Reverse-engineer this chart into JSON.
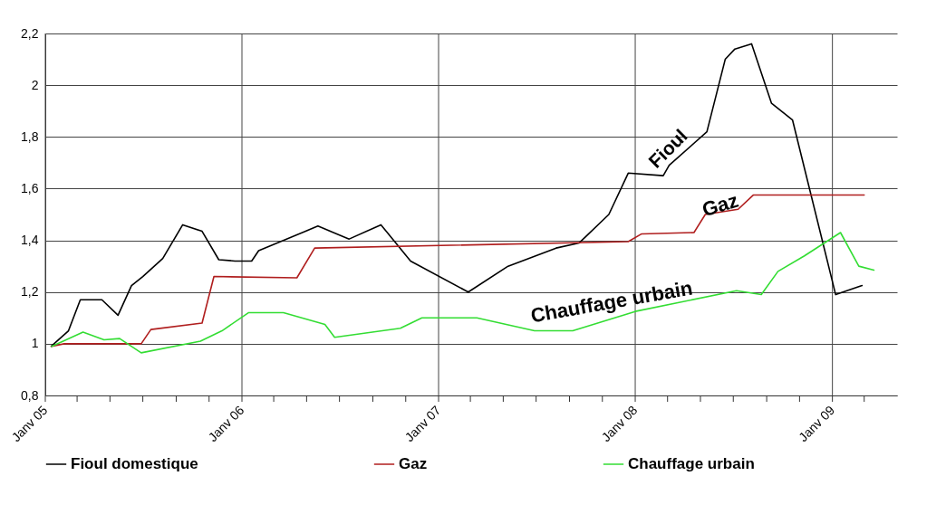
{
  "chart_data": {
    "type": "line",
    "xlim": [
      "2005-01-01",
      "2009-05-01"
    ],
    "xticks": [
      {
        "value": "2005-01-01",
        "label": "Janv 05"
      },
      {
        "value": "2005-03-01",
        "label": null
      },
      {
        "value": "2005-05-01",
        "label": null
      },
      {
        "value": "2005-07-01",
        "label": null
      },
      {
        "value": "2005-09-01",
        "label": null
      },
      {
        "value": "2005-11-01",
        "label": null
      },
      {
        "value": "2006-01-01",
        "label": "Janv 06"
      },
      {
        "value": "2006-03-01",
        "label": null
      },
      {
        "value": "2006-05-01",
        "label": null
      },
      {
        "value": "2006-07-01",
        "label": null
      },
      {
        "value": "2006-09-01",
        "label": null
      },
      {
        "value": "2006-11-01",
        "label": null
      },
      {
        "value": "2007-01-01",
        "label": "Janv 07"
      },
      {
        "value": "2007-03-01",
        "label": null
      },
      {
        "value": "2007-05-01",
        "label": null
      },
      {
        "value": "2007-07-01",
        "label": null
      },
      {
        "value": "2007-09-01",
        "label": null
      },
      {
        "value": "2007-11-01",
        "label": null
      },
      {
        "value": "2008-01-01",
        "label": "Janv 08"
      },
      {
        "value": "2008-03-01",
        "label": null
      },
      {
        "value": "2008-05-01",
        "label": null
      },
      {
        "value": "2008-07-01",
        "label": null
      },
      {
        "value": "2008-09-01",
        "label": null
      },
      {
        "value": "2008-11-01",
        "label": null
      },
      {
        "value": "2009-01-01",
        "label": "Janv 09"
      },
      {
        "value": "2009-03-01",
        "label": null
      }
    ],
    "ylim": [
      0.8,
      2.2
    ],
    "yticks": [
      {
        "value": 0.8,
        "label": "0,8"
      },
      {
        "value": 1,
        "label": "1"
      },
      {
        "value": 1.2,
        "label": "1,2"
      },
      {
        "value": 1.4,
        "label": "1,4"
      },
      {
        "value": 1.6,
        "label": "1,6"
      },
      {
        "value": 1.8,
        "label": "1,8"
      },
      {
        "value": 2,
        "label": "2"
      },
      {
        "value": 2.2,
        "label": "2,2"
      }
    ],
    "grid": true,
    "legend": "bottom",
    "line_style": "solid",
    "marker": "none",
    "series": [
      {
        "name": "Fioul domestique",
        "color": "#000000",
        "x": [
          "2005-01-12",
          "2005-02-13",
          "2005-03-07",
          "2005-04-16",
          "2005-05-16",
          "2005-06-10",
          "2005-07-01",
          "2005-08-07",
          "2005-09-13",
          "2005-10-19",
          "2005-11-19",
          "2005-12-19",
          "2006-01-19",
          "2006-02-01",
          "2006-05-22",
          "2006-07-19",
          "2006-09-16",
          "2006-11-10",
          "2007-02-25",
          "2007-05-10",
          "2007-08-07",
          "2007-09-19",
          "2007-11-13",
          "2007-12-19",
          "2008-02-22",
          "2008-03-04",
          "2008-05-13",
          "2008-06-16",
          "2008-07-04",
          "2008-08-04",
          "2008-09-10",
          "2008-10-19",
          "2009-01-07",
          "2009-02-25"
        ],
        "values": [
          0.99,
          1.05,
          1.17,
          1.17,
          1.11,
          1.225,
          1.26,
          1.33,
          1.46,
          1.435,
          1.325,
          1.32,
          1.32,
          1.36,
          1.455,
          1.405,
          1.46,
          1.32,
          1.2,
          1.3,
          1.37,
          1.39,
          1.5,
          1.66,
          1.65,
          1.69,
          1.82,
          2.1,
          2.14,
          2.16,
          1.93,
          1.865,
          1.19,
          1.225
        ]
      },
      {
        "name": "Gaz",
        "color": "#b01e1e",
        "x": [
          "2005-01-13",
          "2005-02-05",
          "2005-05-19",
          "2005-06-28",
          "2005-07-16",
          "2005-10-19",
          "2005-11-10",
          "2006-04-13",
          "2006-05-16",
          "2007-12-19",
          "2008-01-13",
          "2008-04-19",
          "2008-05-10",
          "2008-07-10",
          "2008-08-07",
          "2009-03-01"
        ],
        "values": [
          0.99,
          1.0,
          1.0,
          1.0,
          1.055,
          1.08,
          1.26,
          1.255,
          1.37,
          1.395,
          1.425,
          1.43,
          1.5,
          1.52,
          1.575,
          1.575
        ]
      },
      {
        "name": "Chauffage urbain",
        "color": "#33dd33",
        "x": [
          "2005-01-13",
          "2005-03-12",
          "2005-04-20",
          "2005-05-19",
          "2005-06-28",
          "2005-10-16",
          "2005-11-25",
          "2006-01-13",
          "2006-03-19",
          "2006-06-04",
          "2006-06-22",
          "2006-10-22",
          "2006-12-01",
          "2007-03-13",
          "2007-06-28",
          "2007-09-07",
          "2008-01-01",
          "2008-07-07",
          "2008-08-22",
          "2008-09-22",
          "2008-11-10",
          "2009-01-16",
          "2009-02-19",
          "2009-03-19"
        ],
        "values": [
          0.99,
          1.045,
          1.015,
          1.02,
          0.965,
          1.01,
          1.05,
          1.12,
          1.12,
          1.075,
          1.025,
          1.06,
          1.1,
          1.1,
          1.05,
          1.05,
          1.125,
          1.205,
          1.19,
          1.28,
          1.34,
          1.43,
          1.3,
          1.285
        ]
      }
    ],
    "annotations": [
      "Fioul",
      "Gaz",
      "Chauffage urbain"
    ]
  }
}
